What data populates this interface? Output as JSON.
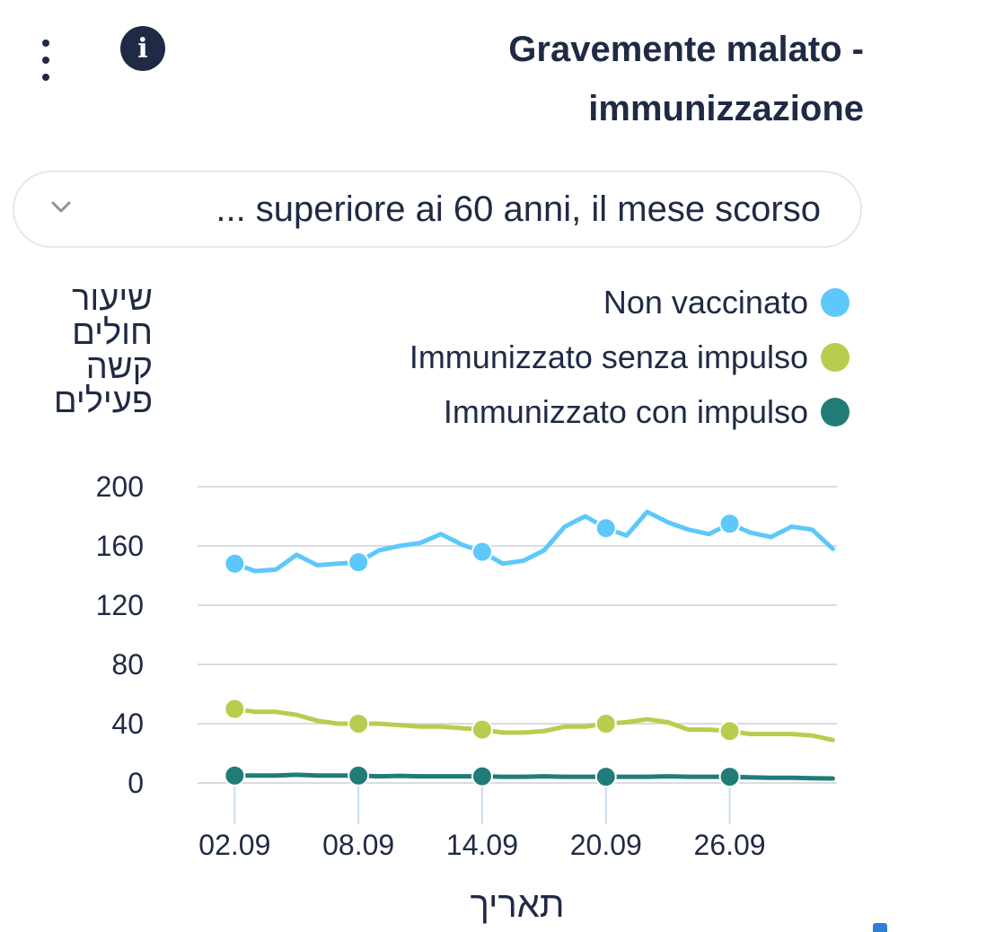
{
  "header": {
    "title_line1": "Gravemente malato -",
    "title_line2": "immunizzazione",
    "info_icon_glyph": "i"
  },
  "filter": {
    "selected": "... superiore ai 60 anni, il mese scorso"
  },
  "colors": {
    "unvaccinated": "#5cc8fb",
    "no_booster": "#b8cd4e",
    "booster": "#217c78",
    "text": "#1f2a44",
    "grid": "#d9dbe0"
  },
  "chart_data": {
    "type": "line",
    "title": "Gravemente malato - immunizzazione",
    "ylabel": "שיעור חולים קשה פעילים",
    "xlabel": "תאריך",
    "ylim": [
      0,
      200
    ],
    "y_ticks": [
      "0",
      "40",
      "80",
      "120",
      "160",
      "200"
    ],
    "x_tick_labels": [
      "02.09",
      "08.09",
      "14.09",
      "20.09",
      "26.09"
    ],
    "x_tick_days": [
      2,
      8,
      14,
      20,
      26
    ],
    "x": [
      2,
      3,
      4,
      5,
      6,
      7,
      8,
      9,
      10,
      11,
      12,
      13,
      14,
      15,
      16,
      17,
      18,
      19,
      20,
      21,
      22,
      23,
      24,
      25,
      26,
      27,
      28,
      29,
      30,
      31
    ],
    "legend_position": "top-right",
    "grid": true,
    "series": [
      {
        "name": "Non vaccinato",
        "color_key": "unvaccinated",
        "values": [
          148,
          143,
          144,
          154,
          147,
          148,
          149,
          157,
          160,
          162,
          168,
          161,
          156,
          148,
          150,
          157,
          173,
          180,
          172,
          167,
          183,
          176,
          171,
          168,
          175,
          169,
          166,
          173,
          171,
          158
        ]
      },
      {
        "name": "Immunizzato senza impulso",
        "color_key": "no_booster",
        "values": [
          50,
          48,
          48,
          46,
          42,
          40,
          40,
          40,
          39,
          38,
          38,
          37,
          36,
          34,
          34,
          35,
          38,
          38,
          40,
          41,
          43,
          41,
          36,
          36,
          35,
          33,
          33,
          33,
          32,
          29
        ]
      },
      {
        "name": "Immunizzato con impulso",
        "color_key": "booster",
        "values": [
          5,
          5,
          5,
          5.5,
          5,
          5,
          5,
          4.5,
          4.8,
          4.5,
          4.5,
          4.5,
          4.5,
          4.2,
          4.2,
          4.5,
          4.2,
          4.2,
          4.2,
          4.2,
          4.2,
          4.5,
          4.2,
          4.2,
          4.2,
          3.8,
          3.5,
          3.5,
          3.2,
          3
        ]
      }
    ]
  }
}
